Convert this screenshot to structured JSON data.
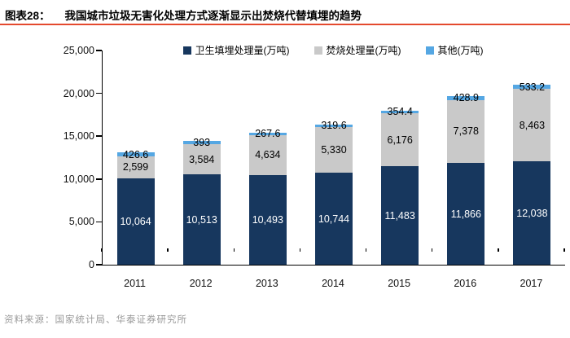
{
  "header": {
    "figure_label": "图表28：",
    "title": "我国城市垃圾无害化处理方式逐渐显示出焚烧代替填埋的趋势",
    "rule_color": "#E4492E"
  },
  "chart_data": {
    "type": "bar",
    "stacked": true,
    "title": "我国城市垃圾无害化处理方式逐渐显示出焚烧代替填埋的趋势",
    "xlabel": "",
    "ylabel": "",
    "categories": [
      "2011",
      "2012",
      "2013",
      "2014",
      "2015",
      "2016",
      "2017"
    ],
    "series": [
      {
        "name": "卫生填埋处理量(万吨)",
        "color": "#17375E",
        "label_color": "#FFFFFF",
        "values": [
          10064,
          10513,
          10493,
          10744,
          11483,
          11866,
          12038
        ],
        "labels": [
          "10,064",
          "10,513",
          "10,493",
          "10,744",
          "11,483",
          "11,866",
          "12,038"
        ]
      },
      {
        "name": "焚烧处理量(万吨)",
        "color": "#C9C9C9",
        "label_color": "#000000",
        "values": [
          2599,
          3584,
          4634,
          5330,
          6176,
          7378,
          8463
        ],
        "labels": [
          "2,599",
          "3,584",
          "4,634",
          "5,330",
          "6,176",
          "7,378",
          "8,463"
        ]
      },
      {
        "name": "其他(万吨)",
        "color": "#55A7E3",
        "label_color": "#000000",
        "values": [
          426.6,
          393,
          267.6,
          319.6,
          354.4,
          428.9,
          533.2
        ],
        "labels": [
          "426.6",
          "393",
          "267.6",
          "319.6",
          "354.4",
          "428.9",
          "533.2"
        ]
      }
    ],
    "ylim": [
      0,
      25000
    ],
    "ytick_step": 5000,
    "ytick_labels": [
      "0",
      "5,000",
      "10,000",
      "15,000",
      "20,000",
      "25,000"
    ],
    "legend_position": "top-center",
    "grid": false,
    "axis_color": "#000000"
  },
  "footer": {
    "source": "资料来源：国家统计局、华泰证券研究所"
  }
}
